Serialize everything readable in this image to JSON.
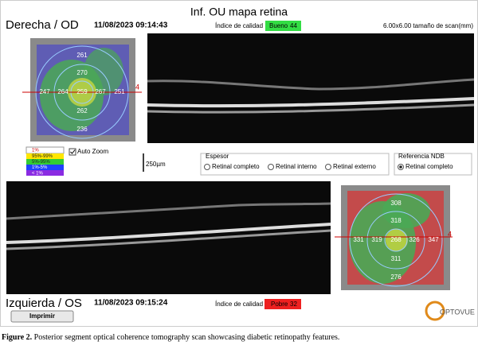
{
  "header": {
    "title": "Inf. OU mapa retina",
    "scan_size": "6.00x6.00 tamaño de scan(mm)"
  },
  "right_eye": {
    "label": "Derecha / OD",
    "datetime": "11/08/2023 09:14:43",
    "quality_label": "Índice de calidad",
    "quality_rating": "Bueno",
    "quality_score": "44",
    "map": {
      "values": [
        "261",
        "270",
        "247",
        "264",
        "259",
        "267",
        "251",
        "262",
        "236"
      ],
      "marker": "4"
    }
  },
  "legend": {
    "items": [
      "1%",
      "95%-99%",
      "5%-95%",
      "1%-5%",
      "< 1%"
    ]
  },
  "auto_zoom": "Auto Zoom",
  "scale_bar": "250µm",
  "thickness": {
    "title": "Espesor",
    "options": [
      "Retinal completo",
      "Retinal interno",
      "Retinal externo"
    ]
  },
  "reference": {
    "title": "Referencia NDB",
    "options": [
      "Retinal completo"
    ]
  },
  "left_eye": {
    "label": "Izquierda / OS",
    "datetime": "11/08/2023 09:15:24",
    "quality_label": "Índice de calidad",
    "quality_rating": "Pobre",
    "quality_score": "32",
    "map": {
      "values": [
        "308",
        "318",
        "331",
        "319",
        "268",
        "326",
        "347",
        "311",
        "276"
      ],
      "marker": "4"
    }
  },
  "print_button": "Imprimir",
  "logo": "OPTOVUE",
  "caption": {
    "label": "Figure 2.",
    "text": "Posterior segment optical coherence tomography scan showcasing diabetic retinopathy features."
  }
}
